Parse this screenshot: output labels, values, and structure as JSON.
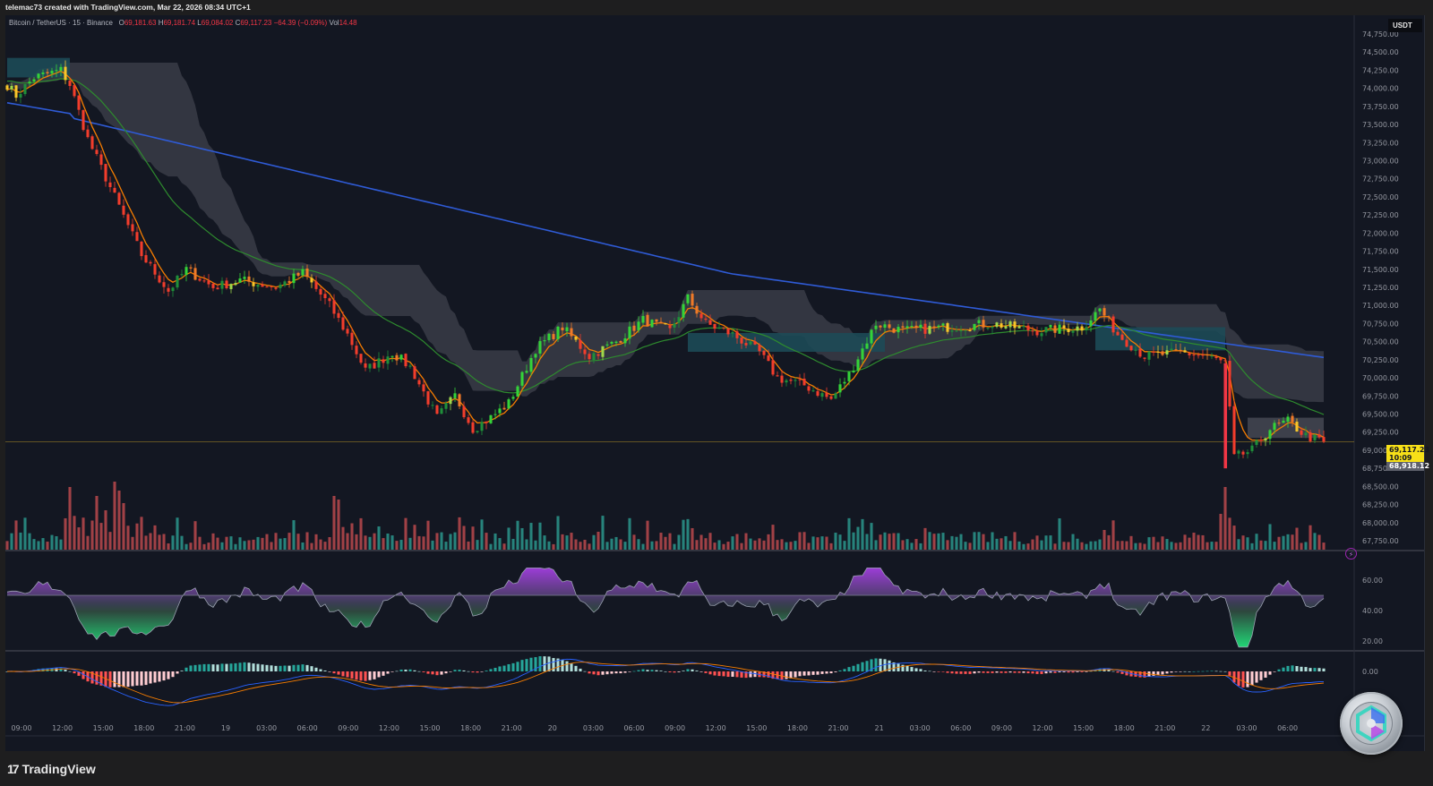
{
  "header": {
    "credit": "telemac73 created with TradingView.com, Mar 22, 2026 08:34 UTC+1"
  },
  "legend": {
    "symbol": "Bitcoin / TetherUS · 15 · Binance",
    "open_label": "O",
    "open": "69,181.63",
    "high_label": "H",
    "high": "69,181.74",
    "low_label": "L",
    "low": "69,084.02",
    "close_label": "C",
    "close": "69,117.23",
    "change": "−64.39 (−0.09%)",
    "vol_label": "Vol",
    "vol": "14.48"
  },
  "currency_label": "USDT",
  "price_tags": {
    "current_price": "69,117.23",
    "countdown": "10:09",
    "low_marker": "68,918.12"
  },
  "footer": {
    "brand": "TradingView",
    "brand_mark": "17"
  },
  "colors": {
    "background": "#131722",
    "up": "#26a69a",
    "down": "#ef5350",
    "ma_fast": "#f57c00",
    "ma_mid": "#2e8b2e",
    "ma_slow": "#2f5bd6",
    "cloud_gray": "#3a3c46",
    "cloud_teal": "#1d4a57"
  },
  "chart_data": [
    {
      "type": "candlestick",
      "title": "Bitcoin / TetherUS · 15 · Binance",
      "ylabel": "USDT",
      "ylim": [
        67700,
        74800
      ],
      "price_ticks": [
        "74,750.00",
        "74,500.00",
        "74,250.00",
        "74,000.00",
        "73,750.00",
        "73,500.00",
        "73,250.00",
        "73,000.00",
        "72,750.00",
        "72,500.00",
        "72,250.00",
        "72,000.00",
        "71,750.00",
        "71,500.00",
        "71,250.00",
        "71,000.00",
        "70,750.00",
        "70,500.00",
        "70,250.00",
        "70,000.00",
        "69,750.00",
        "69,500.00",
        "69,250.00",
        "69,000.00",
        "68,750.00",
        "68,500.00",
        "68,250.00",
        "68,000.00",
        "67,750.00"
      ],
      "time_ticks": [
        "09:00",
        "12:00",
        "15:00",
        "18:00",
        "21:00",
        "19",
        "03:00",
        "06:00",
        "09:00",
        "12:00",
        "15:00",
        "18:00",
        "21:00",
        "20",
        "03:00",
        "06:00",
        "09:00",
        "12:00",
        "15:00",
        "18:00",
        "21:00",
        "21",
        "03:00",
        "06:00",
        "09:00",
        "12:00",
        "15:00",
        "18:00",
        "21:00",
        "22",
        "03:00",
        "06:00"
      ],
      "price_path_keypoints": [
        {
          "t": 0,
          "p": 74050
        },
        {
          "t": 2,
          "p": 73900
        },
        {
          "t": 6,
          "p": 74150
        },
        {
          "t": 12,
          "p": 74250
        },
        {
          "t": 14,
          "p": 74050
        },
        {
          "t": 18,
          "p": 73300
        },
        {
          "t": 24,
          "p": 72500
        },
        {
          "t": 30,
          "p": 71700
        },
        {
          "t": 36,
          "p": 71200
        },
        {
          "t": 40,
          "p": 71500
        },
        {
          "t": 46,
          "p": 71250
        },
        {
          "t": 52,
          "p": 71350
        },
        {
          "t": 60,
          "p": 71250
        },
        {
          "t": 66,
          "p": 71450
        },
        {
          "t": 72,
          "p": 71000
        },
        {
          "t": 76,
          "p": 70600
        },
        {
          "t": 80,
          "p": 70100
        },
        {
          "t": 86,
          "p": 70350
        },
        {
          "t": 90,
          "p": 70150
        },
        {
          "t": 96,
          "p": 69450
        },
        {
          "t": 100,
          "p": 69750
        },
        {
          "t": 104,
          "p": 69300
        },
        {
          "t": 108,
          "p": 69450
        },
        {
          "t": 112,
          "p": 69650
        },
        {
          "t": 118,
          "p": 70400
        },
        {
          "t": 124,
          "p": 70700
        },
        {
          "t": 130,
          "p": 70300
        },
        {
          "t": 136,
          "p": 70500
        },
        {
          "t": 142,
          "p": 70800
        },
        {
          "t": 148,
          "p": 70650
        },
        {
          "t": 152,
          "p": 71100
        },
        {
          "t": 156,
          "p": 70750
        },
        {
          "t": 162,
          "p": 70600
        },
        {
          "t": 168,
          "p": 70350
        },
        {
          "t": 172,
          "p": 70000
        },
        {
          "t": 178,
          "p": 69900
        },
        {
          "t": 184,
          "p": 69700
        },
        {
          "t": 188,
          "p": 70050
        },
        {
          "t": 194,
          "p": 70750
        },
        {
          "t": 200,
          "p": 70650
        },
        {
          "t": 210,
          "p": 70700
        },
        {
          "t": 220,
          "p": 70750
        },
        {
          "t": 230,
          "p": 70650
        },
        {
          "t": 240,
          "p": 70700
        },
        {
          "t": 244,
          "p": 70950
        },
        {
          "t": 248,
          "p": 70600
        },
        {
          "t": 254,
          "p": 70300
        },
        {
          "t": 262,
          "p": 70350
        },
        {
          "t": 268,
          "p": 70300
        },
        {
          "t": 272,
          "p": 70200
        },
        {
          "t": 274,
          "p": 68900
        },
        {
          "t": 278,
          "p": 69000
        },
        {
          "t": 282,
          "p": 69300
        },
        {
          "t": 286,
          "p": 69400
        },
        {
          "t": 290,
          "p": 69200
        },
        {
          "t": 294,
          "p": 69117
        }
      ],
      "series": [
        {
          "name": "MA fast (orange)",
          "type": "line"
        },
        {
          "name": "MA 100 (green)",
          "type": "line",
          "start": 74100,
          "end": 69750
        },
        {
          "name": "MA 200 (blue)",
          "type": "line",
          "start": 73800,
          "end": 70280
        }
      ],
      "last_price": 69117.23
    },
    {
      "type": "bar",
      "title": "Volume",
      "note": "red/teal volume bars along bottom of price pane; spikes near 12:00-15:00 day 18, 09:00 day 19, 21:00 day 21 crash"
    },
    {
      "type": "area",
      "title": "RSI-style oscillator",
      "ylim": [
        15,
        70
      ],
      "ticks": [
        "60.00",
        "40.00",
        "20.00"
      ],
      "midline": 50
    },
    {
      "type": "bar",
      "title": "MACD",
      "ticks": [
        "0.00"
      ],
      "series": [
        {
          "name": "MACD line",
          "color": "#2962ff"
        },
        {
          "name": "Signal",
          "color": "#f57c00"
        },
        {
          "name": "Histogram"
        }
      ]
    }
  ]
}
